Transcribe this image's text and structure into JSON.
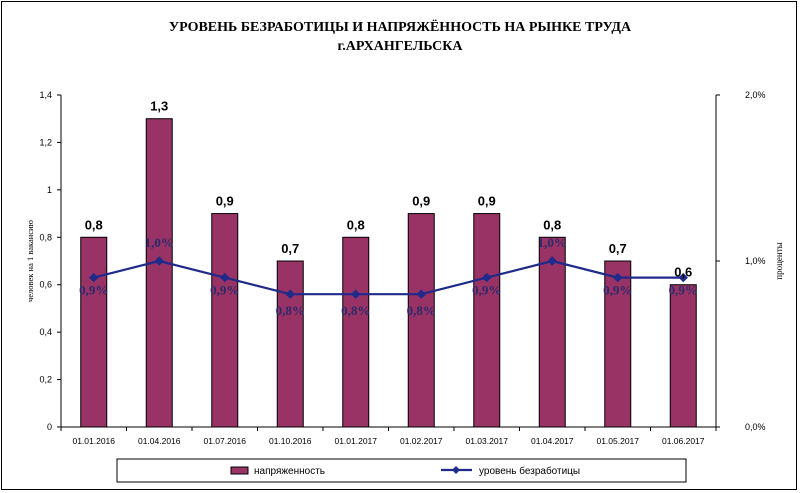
{
  "chart_data": {
    "type": "bar",
    "title": "УРОВЕНЬ БЕЗРАБОТИЦЫ И НАПРЯЖЁННОСТЬ НА РЫНКЕ ТРУДА\nг.АРХАНГЕЛЬСКА",
    "categories": [
      "01.01.2016",
      "01.04.2016",
      "01.07.2016",
      "01.10.2016",
      "01.01.2017",
      "01.02.2017",
      "01.03.2017",
      "01.04.2017",
      "01.05.2017",
      "01.06.2017"
    ],
    "series": [
      {
        "name": "напряженность",
        "type": "bar",
        "axis": "left",
        "color": "#993366",
        "values": [
          0.8,
          1.3,
          0.9,
          0.7,
          0.8,
          0.9,
          0.9,
          0.8,
          0.7,
          0.6
        ],
        "labels": [
          "0,8",
          "1,3",
          "0,9",
          "0,7",
          "0,8",
          "0,9",
          "0,9",
          "0,8",
          "0,7",
          "0,6"
        ]
      },
      {
        "name": "уровень безработицы",
        "type": "line",
        "axis": "right",
        "color": "#1f2a8a",
        "values": [
          0.9,
          1.0,
          0.9,
          0.8,
          0.8,
          0.8,
          0.9,
          1.0,
          0.9,
          0.9
        ],
        "labels": [
          "0,9%",
          "1,0%",
          "0,9%",
          "0,8%",
          "0,8%",
          "0,8%",
          "0,9%",
          "1,0%",
          "0,9%",
          "0,9%"
        ]
      }
    ],
    "ylabel": "человек на 1 вакансию",
    "y2label": "проценты",
    "ylim": [
      0,
      1.4
    ],
    "y2lim": [
      0,
      2.0
    ],
    "yticks": [
      "0",
      "0,2",
      "0,4",
      "0,6",
      "0,8",
      "1",
      "1,2",
      "1,4"
    ],
    "y2ticks": [
      "0,0%",
      "1,0%",
      "2,0%"
    ],
    "grid": false,
    "legend_position": "bottom"
  }
}
